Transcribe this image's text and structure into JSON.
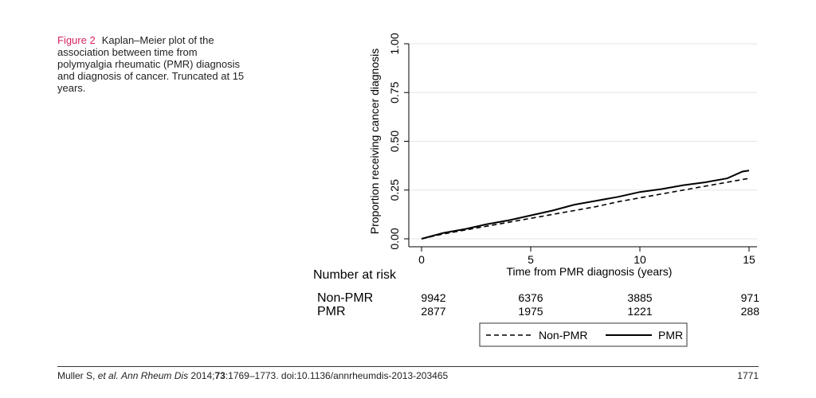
{
  "caption": {
    "label": "Figure 2",
    "text": "Kaplan–Meier plot of the association between time from polymyalgia rheumatic (PMR) diagnosis and diagnosis of cancer. Truncated at 15 years."
  },
  "footer": {
    "authors": "Muller S, ",
    "etal": "et al.",
    "journal": "Ann Rheum Dis",
    "year": " 2014;",
    "volume": "73",
    "pages": ":1769–1773. doi:10.1136/annrheumdis-2013-203465",
    "page_number": "1771"
  },
  "chart_data": {
    "type": "line",
    "title": "",
    "xlabel": "Time from PMR diagnosis (years)",
    "ylabel": "Proportion receiving cancer diagnosis",
    "xlim": [
      0,
      15
    ],
    "ylim": [
      0,
      1
    ],
    "x_ticks": [
      0,
      5,
      10,
      15
    ],
    "x_tick_labels": [
      "0",
      "5",
      "10",
      "15"
    ],
    "y_ticks": [
      0,
      0.25,
      0.5,
      0.75,
      1.0
    ],
    "y_tick_labels": [
      "0.00",
      "0.25",
      "0.50",
      "0.75",
      "1.00"
    ],
    "grid": true,
    "series": [
      {
        "name": "Non-PMR",
        "style": "dashed",
        "x": [
          0,
          1,
          2,
          3,
          4,
          5,
          6,
          7,
          8,
          9,
          10,
          11,
          12,
          13,
          14,
          15
        ],
        "y": [
          0,
          0.025,
          0.045,
          0.065,
          0.085,
          0.105,
          0.125,
          0.145,
          0.165,
          0.19,
          0.21,
          0.23,
          0.25,
          0.27,
          0.29,
          0.31
        ]
      },
      {
        "name": "PMR",
        "style": "solid",
        "x": [
          0,
          1,
          2,
          3,
          4,
          5,
          6,
          7,
          8,
          9,
          10,
          11,
          12,
          13,
          14,
          14.7,
          15
        ],
        "y": [
          0,
          0.03,
          0.05,
          0.075,
          0.095,
          0.12,
          0.145,
          0.175,
          0.195,
          0.215,
          0.24,
          0.255,
          0.275,
          0.29,
          0.31,
          0.345,
          0.35
        ]
      }
    ],
    "risk_table": {
      "title": "Number at risk",
      "times": [
        0,
        5,
        10,
        15
      ],
      "rows": [
        {
          "name": "Non-PMR",
          "values": [
            "9942",
            "6376",
            "3885",
            "971"
          ]
        },
        {
          "name": "PMR",
          "values": [
            "2877",
            "1975",
            "1221",
            "288"
          ]
        }
      ]
    },
    "legend": {
      "placement": "bottom-center",
      "entries": [
        "Non-PMR",
        "PMR"
      ]
    }
  }
}
